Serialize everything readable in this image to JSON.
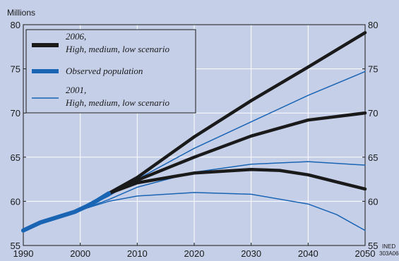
{
  "chart_data": {
    "type": "line",
    "ylabel": "Millions",
    "xlim": [
      1990,
      2050
    ],
    "ylim": [
      55,
      80
    ],
    "x_ticks": [
      "1990",
      "2000",
      "2010",
      "2020",
      "2030",
      "2040",
      "2050"
    ],
    "y_ticks": [
      "55",
      "60",
      "65",
      "70",
      "75",
      "80"
    ],
    "grid": true,
    "legend_position": "top-left",
    "legend": [
      {
        "line1": "2006,",
        "line2": "High, medium, low scenario",
        "style": "thick-black"
      },
      {
        "line1": "Observed population",
        "line2": "",
        "style": "thick-blue"
      },
      {
        "line1": "2001,",
        "line2": "High, medium, low scenario",
        "style": "thin-blue"
      }
    ],
    "series": [
      {
        "group": "observed",
        "color": "#1a64b4",
        "points": [
          [
            1990,
            56.7
          ],
          [
            1993,
            57.6
          ],
          [
            1996,
            58.2
          ],
          [
            1999,
            58.8
          ],
          [
            2001,
            59.4
          ],
          [
            2003,
            60.1
          ],
          [
            2005,
            60.9
          ]
        ]
      },
      {
        "group": "2006",
        "scenario": "high",
        "color": "#1a1a1a",
        "points": [
          [
            2005,
            60.9
          ],
          [
            2010,
            62.7
          ],
          [
            2020,
            67.3
          ],
          [
            2030,
            71.4
          ],
          [
            2040,
            75.2
          ],
          [
            2050,
            79.1
          ]
        ]
      },
      {
        "group": "2006",
        "scenario": "medium",
        "color": "#1a1a1a",
        "points": [
          [
            2005,
            60.9
          ],
          [
            2010,
            62.4
          ],
          [
            2020,
            65.0
          ],
          [
            2030,
            67.4
          ],
          [
            2040,
            69.2
          ],
          [
            2050,
            70.0
          ]
        ]
      },
      {
        "group": "2006",
        "scenario": "low",
        "color": "#1a1a1a",
        "points": [
          [
            2005,
            60.9
          ],
          [
            2010,
            62.1
          ],
          [
            2020,
            63.2
          ],
          [
            2030,
            63.6
          ],
          [
            2035,
            63.5
          ],
          [
            2040,
            63.0
          ],
          [
            2045,
            62.2
          ],
          [
            2050,
            61.4
          ]
        ]
      },
      {
        "group": "2001",
        "scenario": "high",
        "color": "#1a64b4",
        "points": [
          [
            2000,
            59.0
          ],
          [
            2005,
            60.6
          ],
          [
            2010,
            62.5
          ],
          [
            2020,
            66.0
          ],
          [
            2030,
            69.0
          ],
          [
            2040,
            72.0
          ],
          [
            2050,
            74.7
          ]
        ]
      },
      {
        "group": "2001",
        "scenario": "medium",
        "color": "#1a64b4",
        "points": [
          [
            2000,
            59.0
          ],
          [
            2005,
            60.2
          ],
          [
            2010,
            61.6
          ],
          [
            2020,
            63.3
          ],
          [
            2030,
            64.2
          ],
          [
            2040,
            64.5
          ],
          [
            2050,
            64.1
          ]
        ]
      },
      {
        "group": "2001",
        "scenario": "low",
        "color": "#1a64b4",
        "points": [
          [
            2000,
            59.0
          ],
          [
            2005,
            60.0
          ],
          [
            2010,
            60.6
          ],
          [
            2020,
            61.0
          ],
          [
            2030,
            60.8
          ],
          [
            2040,
            59.7
          ],
          [
            2045,
            58.5
          ],
          [
            2050,
            56.7
          ]
        ]
      }
    ],
    "credit_lines": [
      "INED",
      "303A06"
    ]
  },
  "colors": {
    "background": "#c5cfe8",
    "black_series": "#1a1a1a",
    "blue_series": "#1a64b4",
    "grid": "#ffffff"
  }
}
